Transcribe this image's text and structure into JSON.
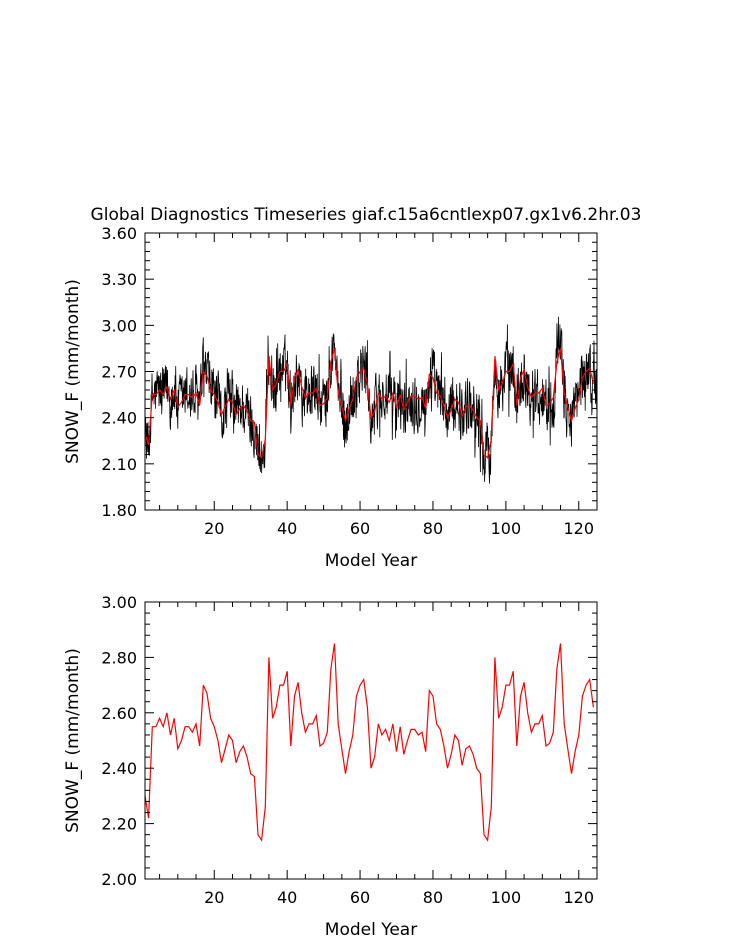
{
  "title": "Global Diagnostics Timeseries giaf.c15a6cntlexp07.gx1v6.2hr.03",
  "colors": {
    "monthly": "#000000",
    "annual": "#ff0000"
  },
  "chart_data": [
    {
      "type": "line",
      "title": "Global Diagnostics Timeseries giaf.c15a6cntlexp07.gx1v6.2hr.03",
      "xlabel": "Model Year",
      "ylabel": "SNOW_F (mm/month)",
      "xlim": [
        1,
        125
      ],
      "ylim": [
        1.8,
        3.6
      ],
      "xticks": [
        20,
        40,
        60,
        80,
        100,
        120
      ],
      "yticks": [
        1.8,
        2.1,
        2.4,
        2.7,
        3.0,
        3.3,
        3.6
      ],
      "ytick_labels": [
        "1.80",
        "2.10",
        "2.40",
        "2.70",
        "3.00",
        "3.30",
        "3.60"
      ],
      "grid": false,
      "series": [
        {
          "color": "#000000",
          "style": "monthly",
          "generator": {
            "mean_from": "annual",
            "monthly_count": 1488,
            "amplitude": 0.25
          }
        },
        {
          "color": "#ff0000",
          "style": "annual",
          "ref": "annual"
        }
      ]
    },
    {
      "type": "line",
      "xlabel": "Model Year",
      "ylabel": "SNOW_F (mm/month)",
      "xlim": [
        1,
        125
      ],
      "ylim": [
        2.0,
        3.0
      ],
      "xticks": [
        20,
        40,
        60,
        80,
        100,
        120
      ],
      "yticks": [
        2.0,
        2.2,
        2.4,
        2.6,
        2.8,
        3.0
      ],
      "ytick_labels": [
        "2.00",
        "2.20",
        "2.40",
        "2.60",
        "2.80",
        "3.00"
      ],
      "grid": false,
      "series": [
        {
          "color": "#ff0000",
          "style": "annual",
          "ref": "annual"
        }
      ]
    }
  ],
  "annual": {
    "x": [
      1,
      2,
      3,
      4,
      5,
      6,
      7,
      8,
      9,
      10,
      11,
      12,
      13,
      14,
      15,
      16,
      17,
      18,
      19,
      20,
      21,
      22,
      23,
      24,
      25,
      26,
      27,
      28,
      29,
      30,
      31,
      32,
      33,
      34,
      35,
      36,
      37,
      38,
      39,
      40,
      41,
      42,
      43,
      44,
      45,
      46,
      47,
      48,
      49,
      50,
      51,
      52,
      53,
      54,
      55,
      56,
      57,
      58,
      59,
      60,
      61,
      62,
      63,
      64,
      65,
      66,
      67,
      68,
      69,
      70,
      71,
      72,
      73,
      74,
      75,
      76,
      77,
      78,
      79,
      80,
      81,
      82,
      83,
      84,
      85,
      86,
      87,
      88,
      89,
      90,
      91,
      92,
      93,
      94,
      95,
      96,
      97,
      98,
      99,
      100,
      101,
      102,
      103,
      104,
      105,
      106,
      107,
      108,
      109,
      110,
      111,
      112,
      113,
      114,
      115,
      116,
      117,
      118,
      119,
      120,
      121,
      122,
      123,
      124
    ],
    "y": [
      2.3,
      2.22,
      2.55,
      2.55,
      2.58,
      2.55,
      2.6,
      2.52,
      2.58,
      2.47,
      2.5,
      2.55,
      2.55,
      2.53,
      2.56,
      2.48,
      2.7,
      2.67,
      2.58,
      2.55,
      2.5,
      2.42,
      2.47,
      2.52,
      2.5,
      2.42,
      2.46,
      2.48,
      2.44,
      2.38,
      2.37,
      2.16,
      2.14,
      2.26,
      2.8,
      2.58,
      2.62,
      2.7,
      2.7,
      2.75,
      2.48,
      2.66,
      2.71,
      2.6,
      2.53,
      2.56,
      2.56,
      2.59,
      2.48,
      2.49,
      2.53,
      2.76,
      2.85,
      2.56,
      2.47,
      2.38,
      2.46,
      2.52,
      2.66,
      2.7,
      2.72,
      2.62,
      2.4,
      2.44,
      2.56,
      2.52,
      2.54,
      2.5,
      2.56,
      2.46,
      2.55,
      2.45,
      2.5,
      2.54,
      2.54,
      2.52,
      2.53,
      2.46,
      2.68,
      2.66,
      2.56,
      2.54,
      2.48,
      2.4,
      2.45,
      2.52,
      2.5,
      2.41,
      2.47,
      2.48,
      2.45,
      2.4,
      2.38,
      2.16,
      2.14,
      2.26,
      2.8,
      2.58,
      2.62,
      2.7,
      2.7,
      2.75,
      2.48,
      2.66,
      2.71,
      2.6,
      2.53,
      2.56,
      2.56,
      2.59,
      2.48,
      2.49,
      2.53,
      2.76,
      2.85,
      2.56,
      2.47,
      2.38,
      2.46,
      2.52,
      2.66,
      2.7,
      2.72,
      2.62
    ]
  }
}
